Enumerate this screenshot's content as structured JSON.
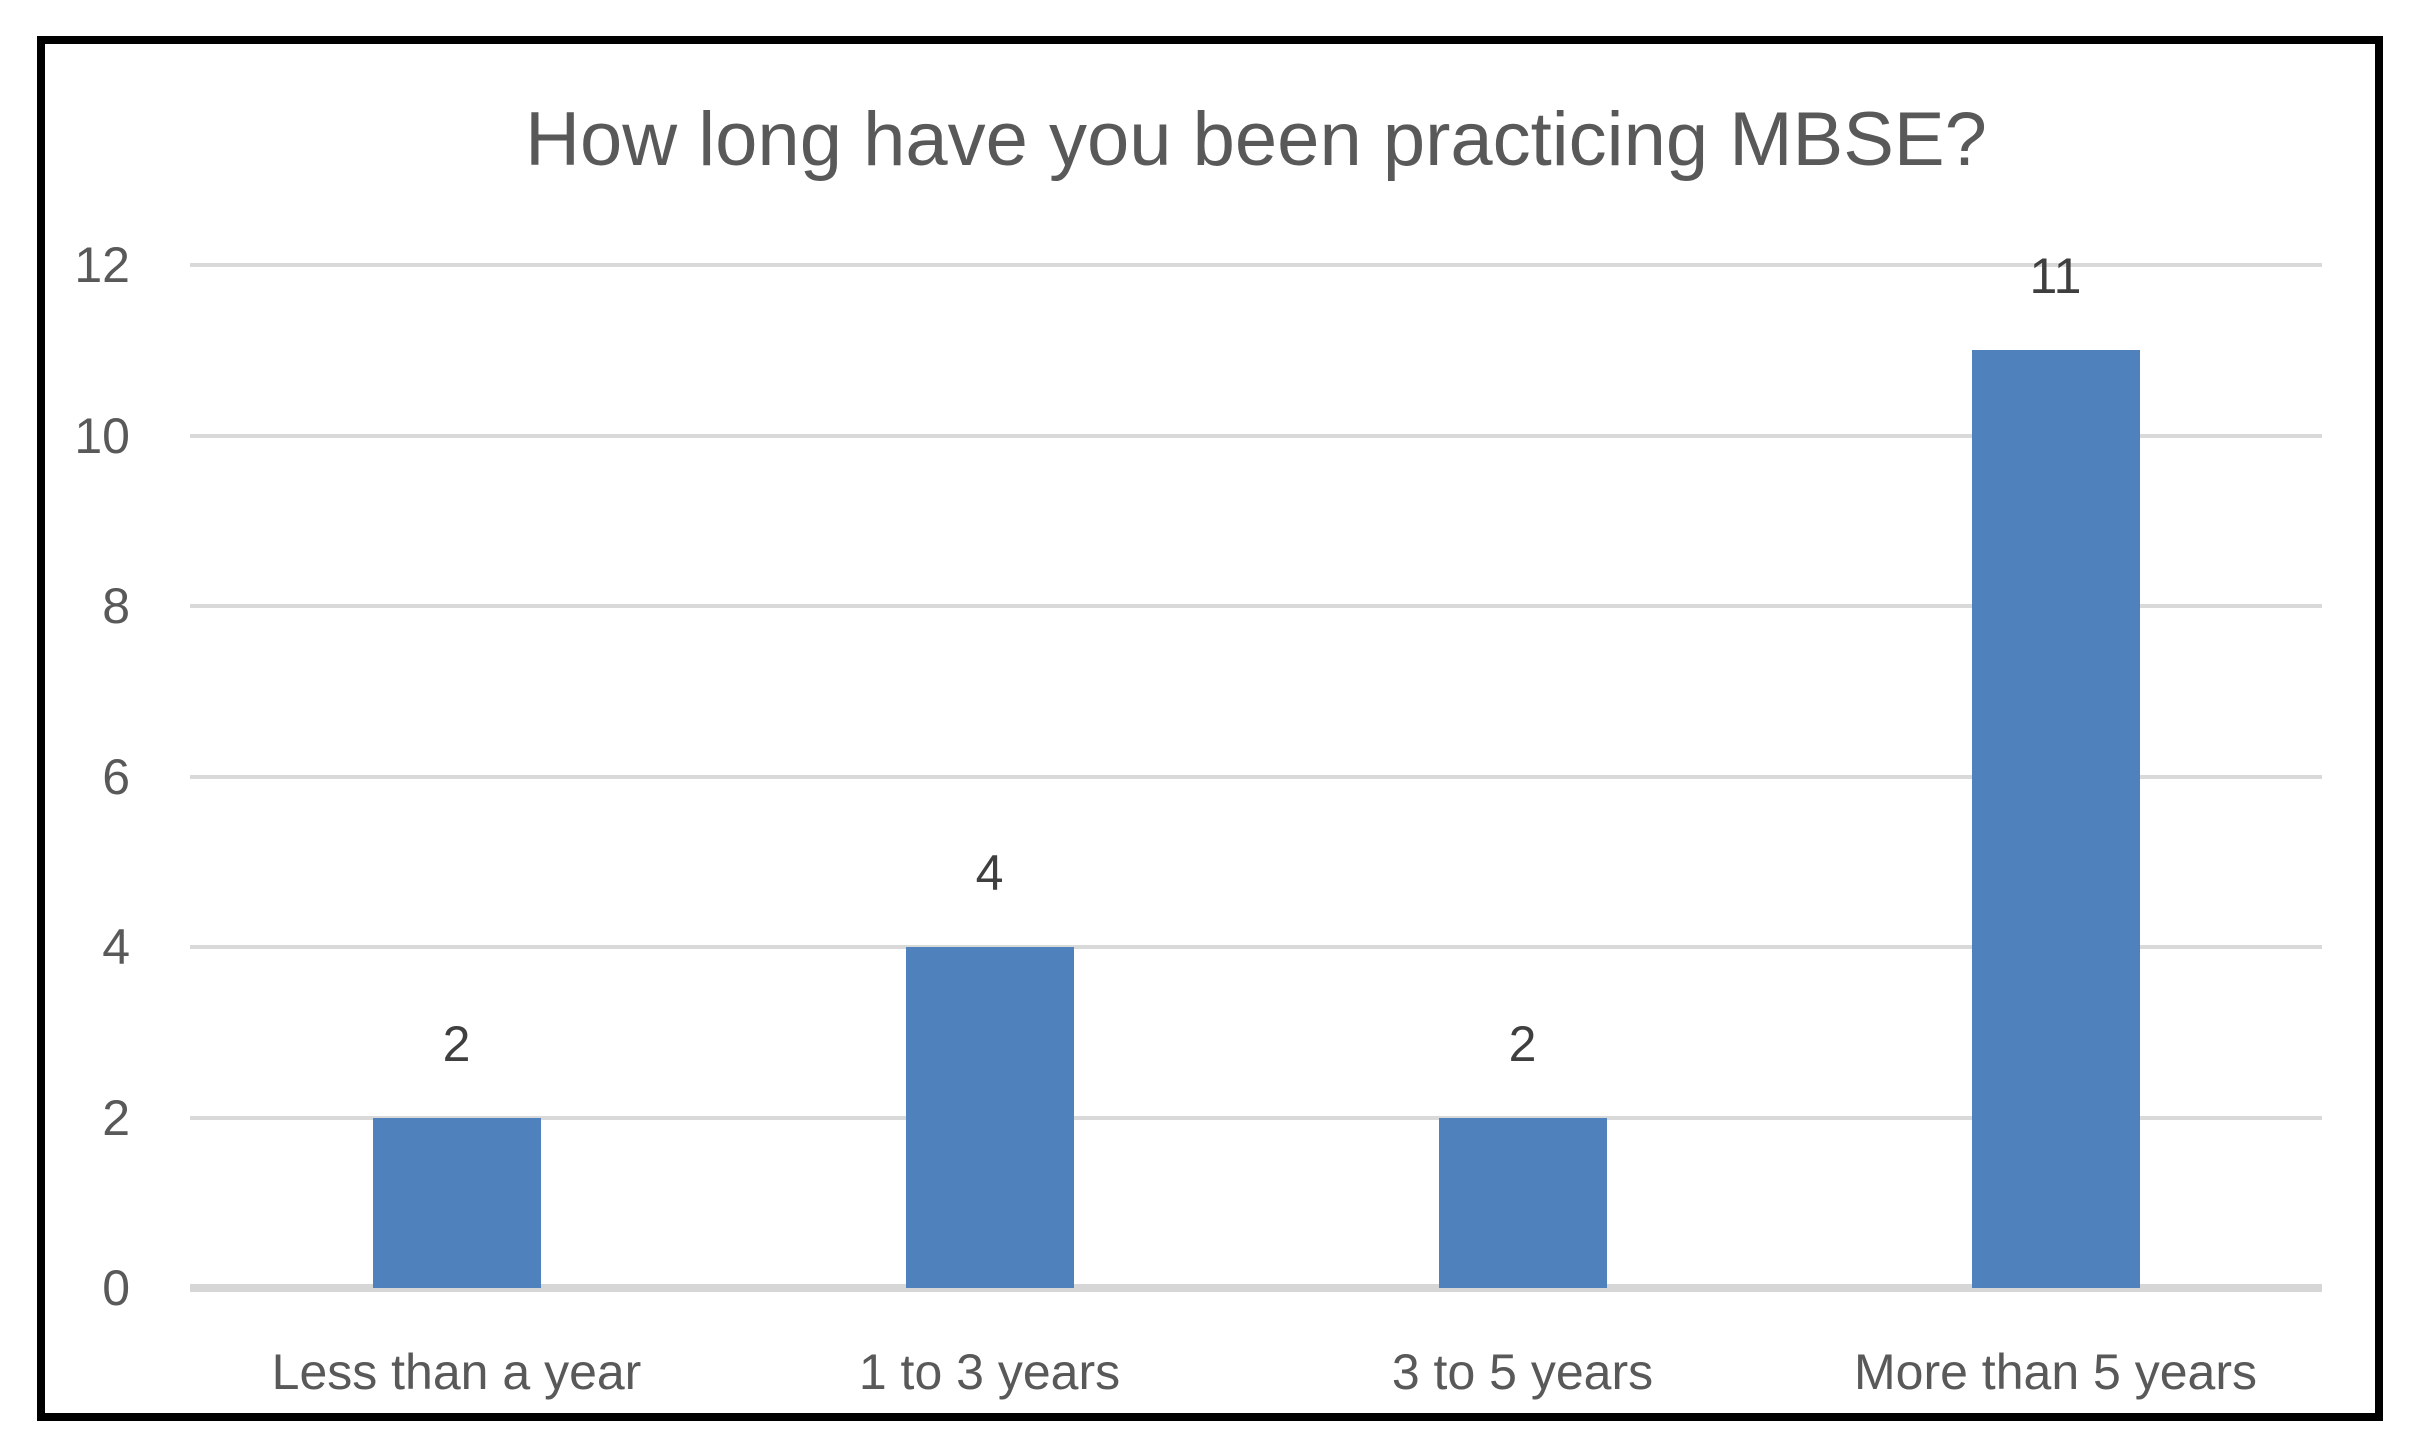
{
  "chart_data": {
    "type": "bar",
    "title": "How long have you been practicing MBSE?",
    "categories": [
      "Less than a year",
      "1 to 3 years",
      "3 to 5 years",
      "More than 5 years"
    ],
    "values": [
      2,
      4,
      2,
      11
    ],
    "data_labels": [
      "2",
      "4",
      "2",
      "11"
    ],
    "xlabel": "",
    "ylabel": "",
    "ylim": [
      0,
      12
    ],
    "yticks": [
      0,
      2,
      4,
      6,
      8,
      10,
      12
    ],
    "grid": "horizontal",
    "legend_position": "none",
    "colors": {
      "bar": "#4f81bd",
      "gridline": "#d9d9d9",
      "axis_line": "#d6d6d6",
      "title_text": "#595959",
      "tick_label_text": "#595959",
      "data_label_text": "#3f3f3f",
      "frame_border": "#000000",
      "background": "#ffffff"
    }
  }
}
